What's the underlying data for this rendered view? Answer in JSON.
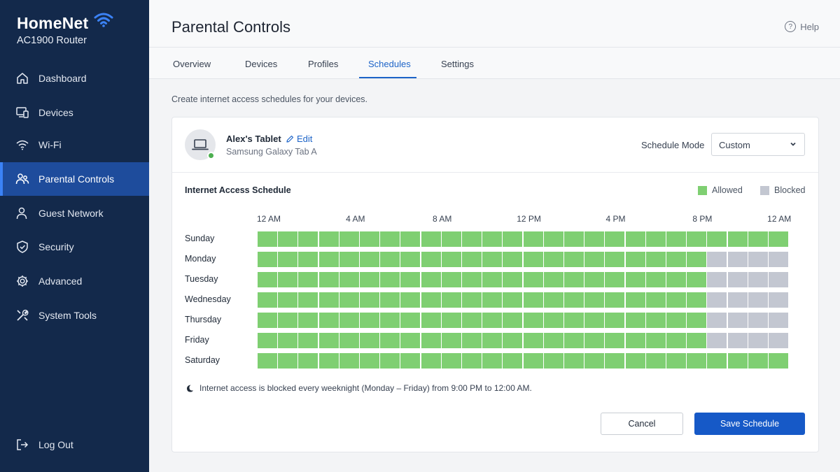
{
  "brand": {
    "name": "HomeNet",
    "model": "AC1900 Router"
  },
  "sidebar": {
    "items": [
      {
        "label": "Dashboard",
        "icon": "home-icon"
      },
      {
        "label": "Devices",
        "icon": "devices-icon"
      },
      {
        "label": "Wi-Fi",
        "icon": "wifi-icon"
      },
      {
        "label": "Parental Controls",
        "icon": "parental-icon",
        "active": true
      },
      {
        "label": "Guest Network",
        "icon": "guest-icon"
      },
      {
        "label": "Security",
        "icon": "shield-icon"
      },
      {
        "label": "Advanced",
        "icon": "gear-icon"
      },
      {
        "label": "System Tools",
        "icon": "tools-icon"
      }
    ],
    "logout": {
      "label": "Log Out",
      "icon": "logout-icon"
    }
  },
  "header": {
    "title": "Parental Controls",
    "help": "Help"
  },
  "tabs": [
    {
      "label": "Overview"
    },
    {
      "label": "Devices"
    },
    {
      "label": "Profiles"
    },
    {
      "label": "Schedules",
      "active": true
    },
    {
      "label": "Settings"
    }
  ],
  "intro": "Create internet access schedules for your devices.",
  "device": {
    "name": "Alex's Tablet",
    "edit": "Edit",
    "model": "Samsung Galaxy Tab A",
    "status": "online"
  },
  "schedule_mode": {
    "label": "Schedule Mode",
    "value": "Custom"
  },
  "schedule": {
    "title": "Internet Access Schedule",
    "legend": {
      "allowed": "Allowed",
      "blocked": "Blocked"
    },
    "colors": {
      "allowed": "#7fcf72",
      "blocked": "#c3c7d1"
    },
    "time_labels": [
      "12 AM",
      "4 AM",
      "8 AM",
      "12 PM",
      "4 PM",
      "8 PM",
      "12 AM"
    ],
    "slots_per_day": 26,
    "days": [
      {
        "name": "Sunday",
        "blocked_from": 26
      },
      {
        "name": "Monday",
        "blocked_from": 22
      },
      {
        "name": "Tuesday",
        "blocked_from": 22
      },
      {
        "name": "Wednesday",
        "blocked_from": 22
      },
      {
        "name": "Thursday",
        "blocked_from": 22
      },
      {
        "name": "Friday",
        "blocked_from": 22
      },
      {
        "name": "Saturday",
        "blocked_from": 26
      }
    ],
    "note": "Internet access is blocked every weeknight (Monday – Friday) from 9:00 PM to 12:00 AM."
  },
  "actions": {
    "cancel": "Cancel",
    "save": "Save Schedule"
  },
  "accent_color": "#1d64c8"
}
